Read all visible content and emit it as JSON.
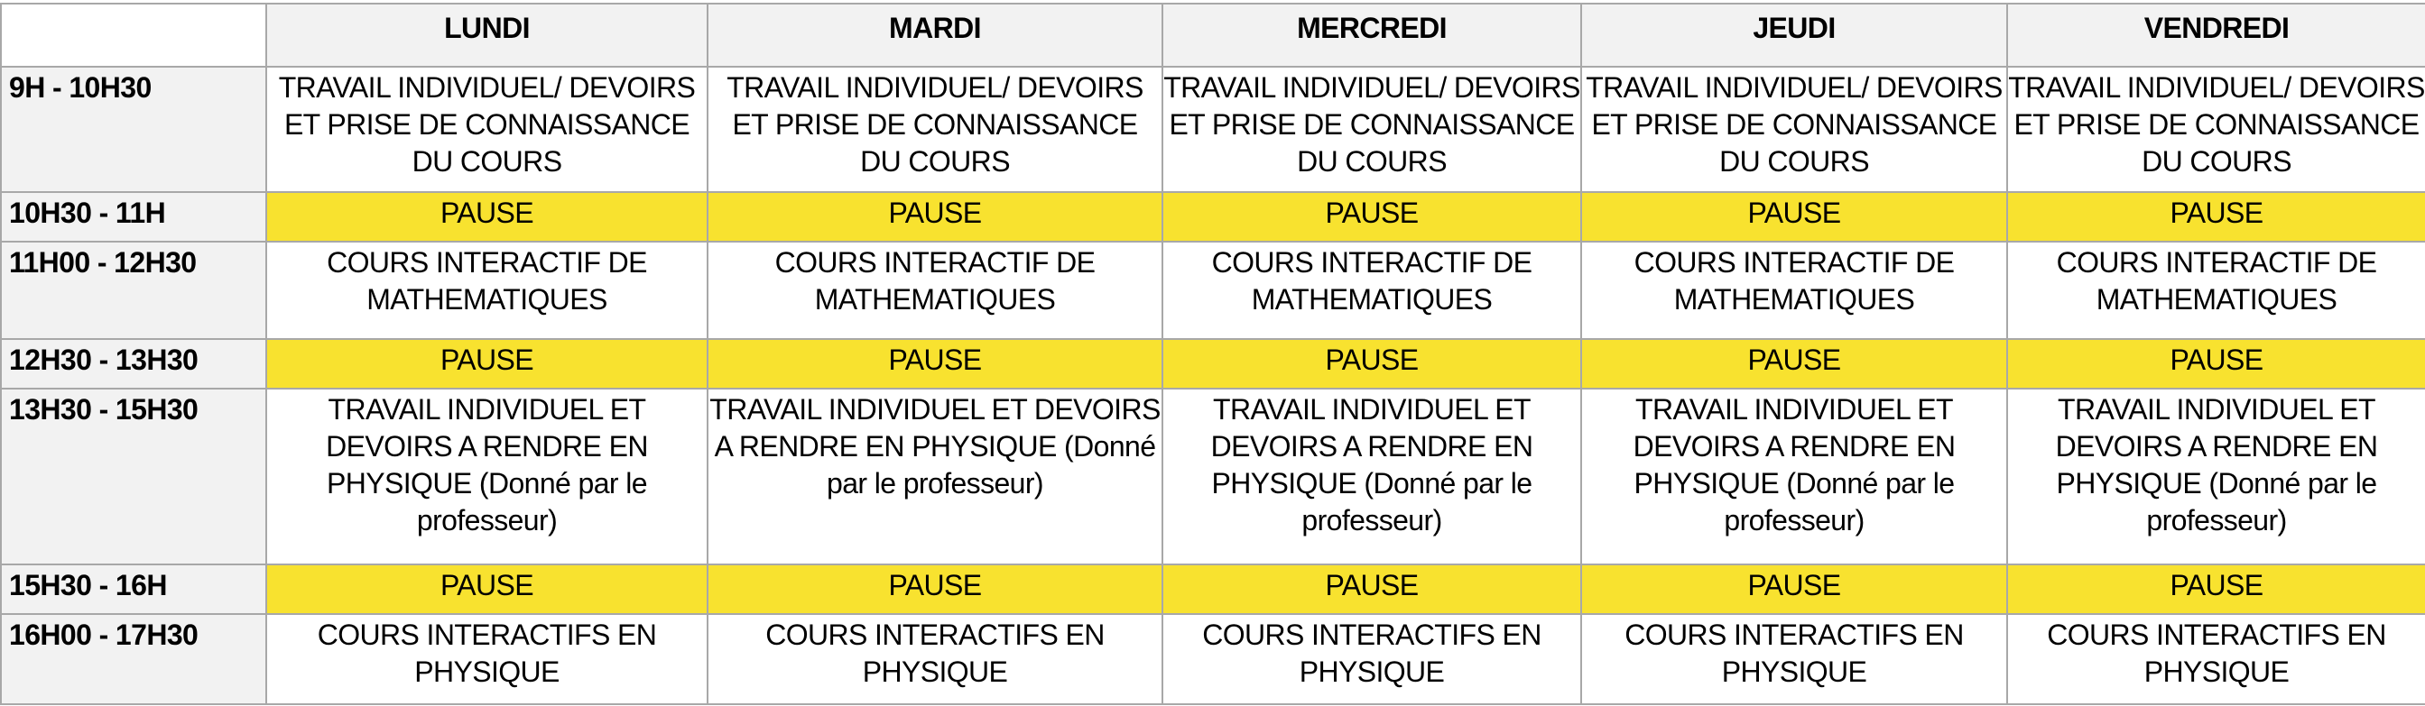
{
  "days": [
    "LUNDI",
    "MARDI",
    "MERCREDI",
    "JEUDI",
    "VENDREDI"
  ],
  "colors": {
    "pause": "#f8e22f",
    "header": "#f2f2f2",
    "border": "#a8a8a8"
  },
  "rows": [
    {
      "time": "9H - 10H30",
      "activity": "TRAVAIL INDIVIDUEL/ DEVOIRS ET PRISE DE CONNAISSANCE DU COURS",
      "pause": false
    },
    {
      "time": "10H30 - 11H",
      "activity": "PAUSE",
      "pause": true
    },
    {
      "time": "11H00 - 12H30",
      "activity": "COURS INTERACTIF DE MATHEMATIQUES",
      "pause": false
    },
    {
      "time": "12H30 - 13H30",
      "activity": "PAUSE",
      "pause": true
    },
    {
      "time": "13H30 - 15H30",
      "activity": "TRAVAIL INDIVIDUEL ET DEVOIRS A RENDRE EN PHYSIQUE (Donné par le professeur)",
      "pause": false
    },
    {
      "time": "15H30 - 16H",
      "activity": "PAUSE",
      "pause": true
    },
    {
      "time": "16H00 - 17H30",
      "activity": "COURS INTERACTIFS EN PHYSIQUE",
      "pause": false
    }
  ]
}
